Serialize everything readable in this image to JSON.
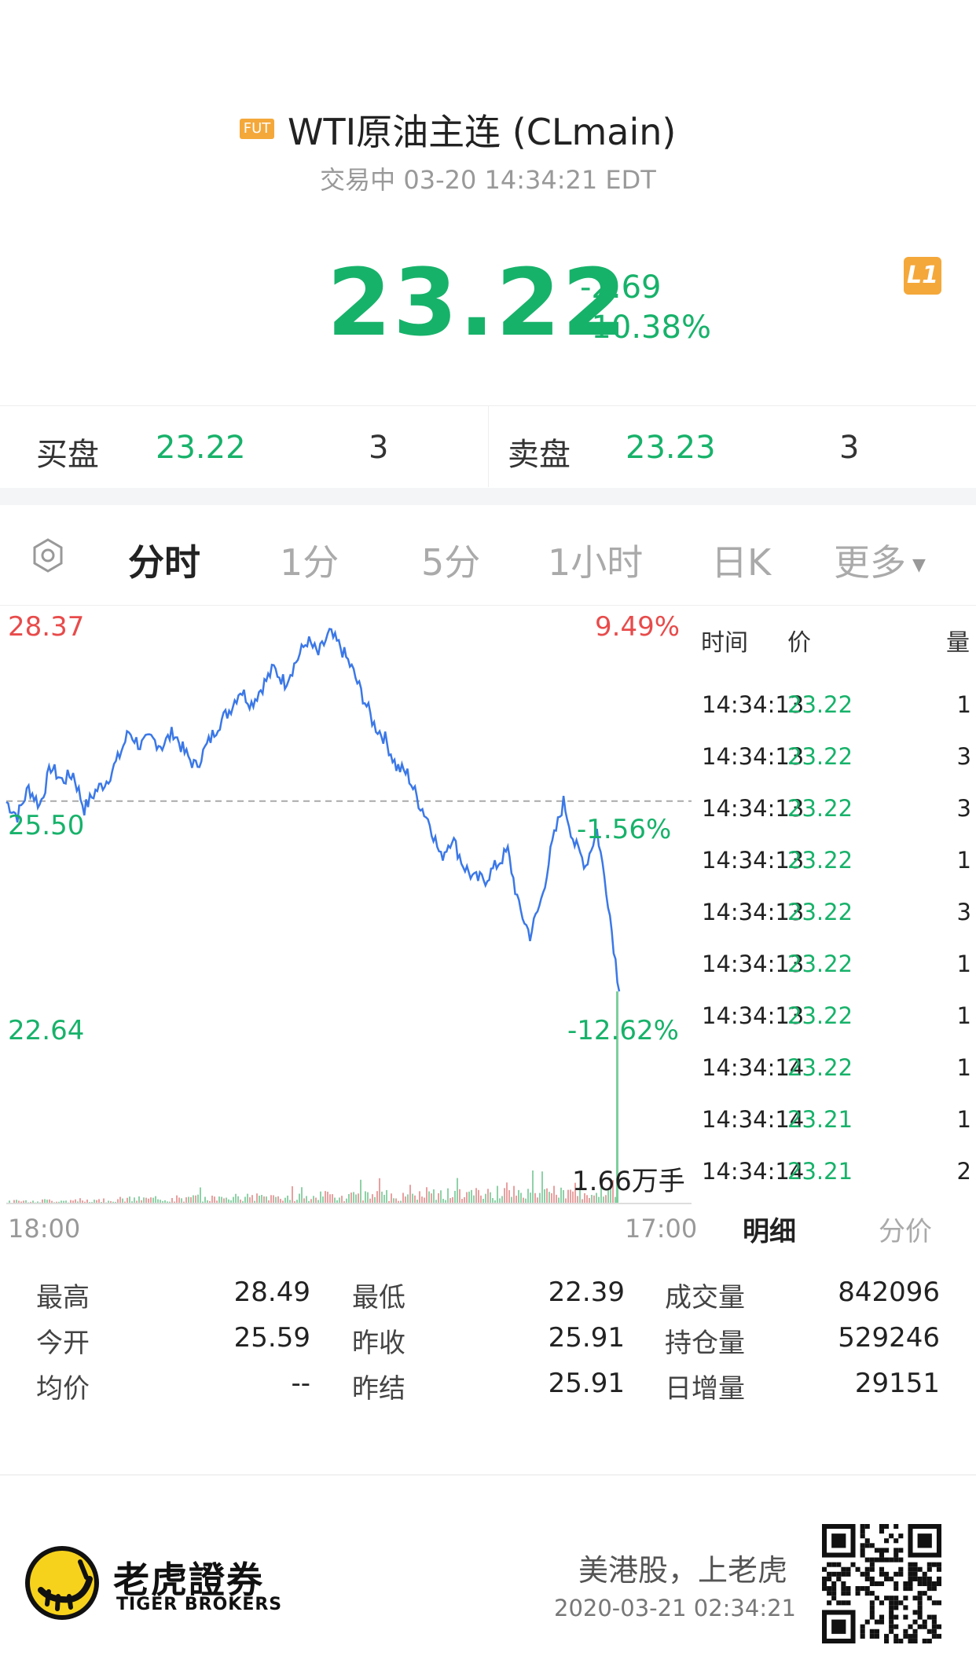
{
  "header": {
    "badge": "FUT",
    "title": "WTI原油主连 (CLmain)",
    "status": "交易中 03-20 14:34:21 EDT"
  },
  "quote": {
    "price": "23.22",
    "change": "-2.69",
    "change_pct": "-10.38%",
    "level_badge": "L1"
  },
  "orderbook": {
    "bid_label": "买盘",
    "bid_price": "23.22",
    "bid_qty": "3",
    "ask_label": "卖盘",
    "ask_price": "23.23",
    "ask_qty": "3"
  },
  "tabs": [
    {
      "label": "分时",
      "active": true
    },
    {
      "label": "1分",
      "active": false
    },
    {
      "label": "5分",
      "active": false
    },
    {
      "label": "1小时",
      "active": false
    },
    {
      "label": "日K",
      "active": false
    },
    {
      "label": "更多",
      "active": false
    }
  ],
  "ticker": {
    "header_time": "时间",
    "header_price": "价",
    "header_vol": "量",
    "rows": [
      {
        "time": "14:34:13",
        "price": "23.22",
        "vol": "1"
      },
      {
        "time": "14:34:13",
        "price": "23.22",
        "vol": "3"
      },
      {
        "time": "14:34:13",
        "price": "23.22",
        "vol": "3"
      },
      {
        "time": "14:34:13",
        "price": "23.22",
        "vol": "1"
      },
      {
        "time": "14:34:13",
        "price": "23.22",
        "vol": "3"
      },
      {
        "time": "14:34:13",
        "price": "23.22",
        "vol": "1"
      },
      {
        "time": "14:34:13",
        "price": "23.22",
        "vol": "1"
      },
      {
        "time": "14:34:14",
        "price": "23.22",
        "vol": "1"
      },
      {
        "time": "14:34:14",
        "price": "23.21",
        "vol": "1"
      },
      {
        "time": "14:34:14",
        "price": "23.21",
        "vol": "2"
      }
    ],
    "tab_detail": "明细",
    "tab_price": "分价"
  },
  "chart_data": {
    "type": "line",
    "y_top_label": "28.37",
    "y_top_pct": "9.49%",
    "y_mid_label": "25.50",
    "y_mid_pct": "-1.56%",
    "y_bot_label": "22.64",
    "y_bot_pct": "-12.62%",
    "reference_price": 25.91,
    "ylim": [
      22.64,
      28.37
    ],
    "x_start_label": "18:00",
    "x_end_label": "17:00",
    "volume_label": "1.66万手",
    "series": [
      {
        "values": [
          25.9,
          25.7,
          26.1,
          25.85,
          26.4,
          26.2,
          26.3,
          25.8,
          26.05,
          26.2,
          26.5,
          26.9,
          26.7,
          26.8,
          26.7,
          26.9,
          26.6,
          26.4,
          26.7,
          27.0,
          27.2,
          27.5,
          27.3,
          27.55,
          27.8,
          27.6,
          27.9,
          28.2,
          28.0,
          28.3,
          28.1,
          27.8,
          27.4,
          27.0,
          26.8,
          26.4,
          26.3,
          25.9,
          25.6,
          25.1,
          25.4,
          25.0,
          24.8,
          24.8,
          25.0,
          25.2,
          24.4,
          24.0,
          24.5,
          25.3,
          25.9,
          25.3,
          25.0,
          25.5,
          24.5,
          23.2
        ]
      }
    ]
  },
  "stats": [
    {
      "label": "最高",
      "value": "28.49"
    },
    {
      "label": "最低",
      "value": "22.39"
    },
    {
      "label": "成交量",
      "value": "842096"
    },
    {
      "label": "今开",
      "value": "25.59"
    },
    {
      "label": "昨收",
      "value": "25.91"
    },
    {
      "label": "持仓量",
      "value": "529246"
    },
    {
      "label": "均价",
      "value": "--"
    },
    {
      "label": "昨结",
      "value": "25.91"
    },
    {
      "label": "日增量",
      "value": "29151"
    }
  ],
  "footer": {
    "brand_cn": "老虎證券",
    "brand_en": "TIGER BROKERS",
    "slogan": "美港股，上老虎",
    "timestamp": "2020-03-21 02:34:21"
  },
  "colors": {
    "down": "#17b26a",
    "up": "#e84b4b",
    "line": "#3b78e7",
    "accent": "#f4a83a"
  }
}
